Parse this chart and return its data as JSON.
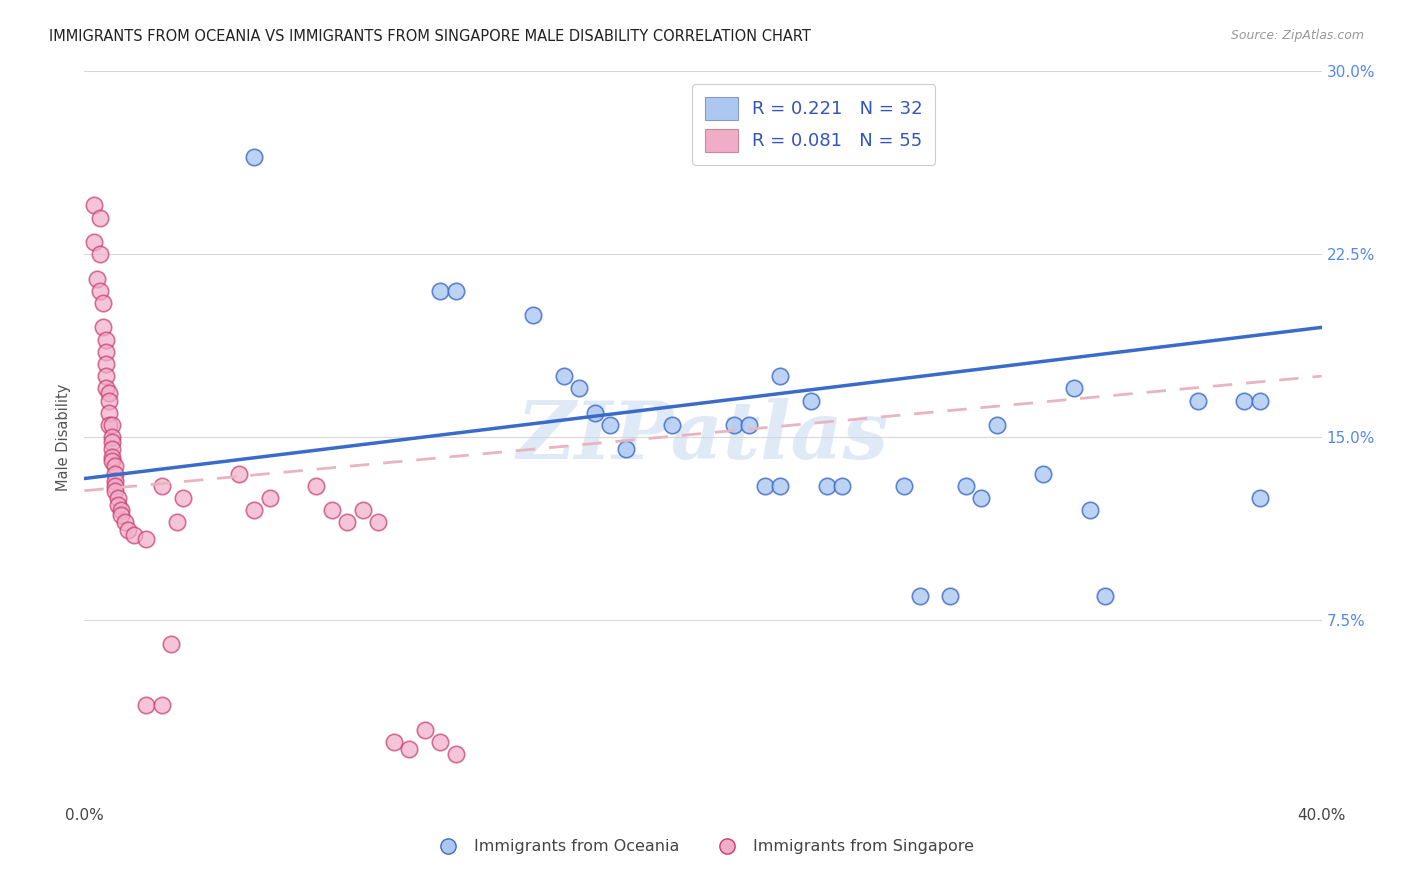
{
  "title": "IMMIGRANTS FROM OCEANIA VS IMMIGRANTS FROM SINGAPORE MALE DISABILITY CORRELATION CHART",
  "source": "Source: ZipAtlas.com",
  "ylabel": "Male Disability",
  "xlim": [
    0.0,
    0.4
  ],
  "ylim": [
    0.0,
    0.3
  ],
  "xticks": [
    0.0,
    0.1,
    0.2,
    0.3,
    0.4
  ],
  "yticks": [
    0.0,
    0.075,
    0.15,
    0.225,
    0.3
  ],
  "ytick_labels_right": [
    "",
    "7.5%",
    "15.0%",
    "22.5%",
    "30.0%"
  ],
  "legend_r1": "R = 0.221",
  "legend_n1": "N = 32",
  "legend_r2": "R = 0.081",
  "legend_n2": "N = 55",
  "watermark": "ZIPatlas",
  "color_blue": "#adc8f0",
  "color_pink": "#f0adc8",
  "line_blue": "#3a6bc9",
  "line_pink": "#c93a6b",
  "blue_line_start_y": 0.133,
  "blue_line_end_y": 0.195,
  "pink_line_start_y": 0.128,
  "pink_line_end_y": 0.175,
  "scatter_blue_x": [
    0.055,
    0.115,
    0.12,
    0.145,
    0.155,
    0.16,
    0.165,
    0.17,
    0.175,
    0.19,
    0.21,
    0.215,
    0.22,
    0.225,
    0.225,
    0.235,
    0.24,
    0.245,
    0.265,
    0.27,
    0.28,
    0.285,
    0.29,
    0.295,
    0.31,
    0.32,
    0.325,
    0.33,
    0.36,
    0.375,
    0.38,
    0.38
  ],
  "scatter_blue_y": [
    0.265,
    0.21,
    0.21,
    0.2,
    0.175,
    0.17,
    0.16,
    0.155,
    0.145,
    0.155,
    0.155,
    0.155,
    0.13,
    0.13,
    0.175,
    0.165,
    0.13,
    0.13,
    0.13,
    0.085,
    0.085,
    0.13,
    0.125,
    0.155,
    0.135,
    0.17,
    0.12,
    0.085,
    0.165,
    0.165,
    0.165,
    0.125
  ],
  "scatter_pink_x": [
    0.003,
    0.003,
    0.004,
    0.005,
    0.005,
    0.005,
    0.006,
    0.006,
    0.007,
    0.007,
    0.007,
    0.007,
    0.007,
    0.008,
    0.008,
    0.008,
    0.008,
    0.009,
    0.009,
    0.009,
    0.009,
    0.009,
    0.009,
    0.01,
    0.01,
    0.01,
    0.01,
    0.01,
    0.011,
    0.011,
    0.012,
    0.012,
    0.013,
    0.014,
    0.016,
    0.02,
    0.025,
    0.028,
    0.03,
    0.032,
    0.05,
    0.055,
    0.06,
    0.075,
    0.08,
    0.085,
    0.09,
    0.095,
    0.1,
    0.105,
    0.11,
    0.115,
    0.12,
    0.02,
    0.025
  ],
  "scatter_pink_y": [
    0.245,
    0.23,
    0.215,
    0.24,
    0.225,
    0.21,
    0.205,
    0.195,
    0.19,
    0.185,
    0.18,
    0.175,
    0.17,
    0.168,
    0.165,
    0.16,
    0.155,
    0.155,
    0.15,
    0.148,
    0.145,
    0.142,
    0.14,
    0.138,
    0.135,
    0.132,
    0.13,
    0.128,
    0.125,
    0.122,
    0.12,
    0.118,
    0.115,
    0.112,
    0.11,
    0.108,
    0.13,
    0.065,
    0.115,
    0.125,
    0.135,
    0.12,
    0.125,
    0.13,
    0.12,
    0.115,
    0.12,
    0.115,
    0.025,
    0.022,
    0.03,
    0.025,
    0.02,
    0.04,
    0.04
  ]
}
